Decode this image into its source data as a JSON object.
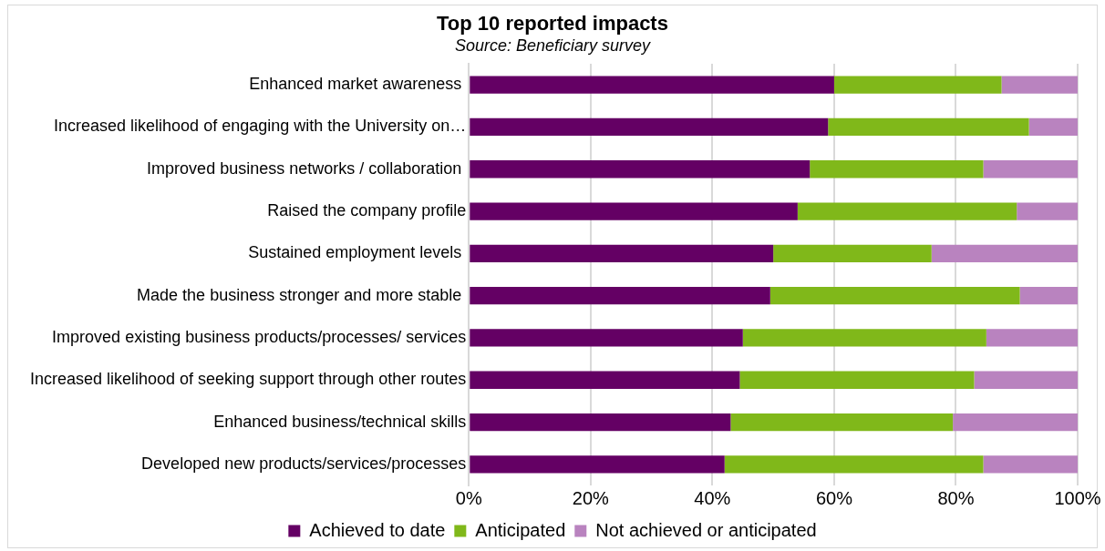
{
  "chart_data": {
    "type": "bar",
    "orientation": "horizontal",
    "stacked": true,
    "title": "Top 10 reported impacts",
    "subtitle": "Source: Beneficiary survey",
    "categories": [
      "Enhanced market awareness ",
      "Increased likelihood of engaging with the University on…",
      "Improved business networks / collaboration ",
      "Raised the company profile",
      "Sustained employment levels ",
      "Made the business stronger and more stable ",
      "Improved existing business products/processes/ services",
      "Increased likelihood of seeking support through other routes",
      "Enhanced business/technical skills",
      "Developed new products/services/processes"
    ],
    "series": [
      {
        "name": "Achieved to date",
        "color": "#640064",
        "values": [
          60,
          59,
          56,
          54,
          50,
          49.5,
          45,
          44.5,
          43,
          42
        ]
      },
      {
        "name": "Anticipated",
        "color": "#80b81a",
        "values": [
          27.5,
          33,
          28.5,
          36,
          26,
          41,
          40,
          38.5,
          36.5,
          42.5
        ]
      },
      {
        "name": "Not achieved or anticipated",
        "color": "#b983bf",
        "values": [
          12.5,
          8,
          15.5,
          10,
          24,
          9.5,
          15,
          17,
          20.5,
          15.5
        ]
      }
    ],
    "xlim": [
      0,
      100
    ],
    "xticks": [
      {
        "value": 0,
        "label": "0%"
      },
      {
        "value": 20,
        "label": "20%"
      },
      {
        "value": 40,
        "label": "40%"
      },
      {
        "value": 60,
        "label": "60%"
      },
      {
        "value": 80,
        "label": "80%"
      },
      {
        "value": 100,
        "label": "100%"
      }
    ],
    "grid": "x",
    "legend": "bottom"
  }
}
